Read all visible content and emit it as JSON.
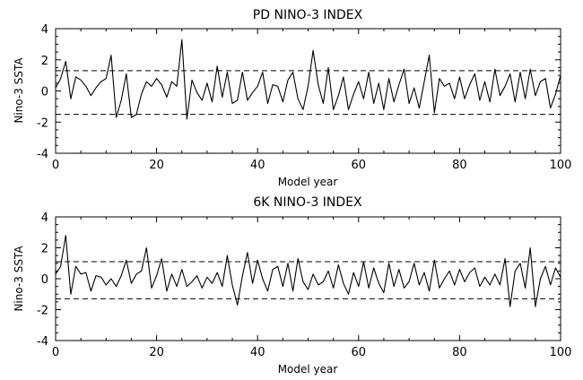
{
  "chart_data": [
    {
      "type": "line",
      "title": "PD NINO-3 INDEX",
      "xlabel": "Model year",
      "ylabel": "Nino-3 SSTA",
      "xlim": [
        0,
        100
      ],
      "ylim": [
        -4,
        4
      ],
      "xticks": [
        "0",
        "20",
        "40",
        "60",
        "80",
        "100"
      ],
      "yticks": [
        "4",
        "2",
        "0",
        "-2",
        "-4"
      ],
      "thresholds": [
        1.3,
        -1.5
      ],
      "grid": false,
      "series": [
        {
          "color": "#000000",
          "x": [
            0,
            1,
            2,
            3,
            4,
            5,
            6,
            7,
            8,
            9,
            10,
            11,
            12,
            13,
            14,
            15,
            16,
            17,
            18,
            19,
            20,
            21,
            22,
            23,
            24,
            25,
            26,
            27,
            28,
            29,
            30,
            31,
            32,
            33,
            34,
            35,
            36,
            37,
            38,
            39,
            40,
            41,
            42,
            43,
            44,
            45,
            46,
            47,
            48,
            49,
            50,
            51,
            52,
            53,
            54,
            55,
            56,
            57,
            58,
            59,
            60,
            61,
            62,
            63,
            64,
            65,
            66,
            67,
            68,
            69,
            70,
            71,
            72,
            73,
            74,
            75,
            76,
            77,
            78,
            79,
            80,
            81,
            82,
            83,
            84,
            85,
            86,
            87,
            88,
            89,
            90,
            91,
            92,
            93,
            94,
            95,
            96,
            97,
            98,
            99,
            100
          ],
          "y": [
            0.2,
            0.8,
            1.9,
            -0.5,
            0.9,
            0.7,
            0.3,
            -0.3,
            0.2,
            0.6,
            0.8,
            2.3,
            -1.7,
            -0.6,
            1.1,
            -1.7,
            -1.5,
            -0.2,
            0.6,
            0.3,
            0.8,
            0.4,
            -0.4,
            0.6,
            0.3,
            3.3,
            -1.8,
            0.7,
            -0.1,
            -0.6,
            0.5,
            -0.7,
            1.6,
            -0.4,
            1.2,
            -0.8,
            -0.6,
            1.2,
            -0.6,
            -0.1,
            0.3,
            1.2,
            -0.8,
            0.4,
            0.3,
            -0.7,
            0.7,
            1.2,
            -0.5,
            -1.2,
            0.3,
            2.6,
            0.4,
            -0.8,
            1.5,
            -1.2,
            -0.3,
            0.9,
            -1.2,
            -0.2,
            0.6,
            -0.5,
            1.2,
            -0.8,
            0.5,
            -1.2,
            0.8,
            -0.7,
            0.4,
            1.4,
            -0.8,
            0.2,
            -1.1,
            0.6,
            2.3,
            -1.4,
            0.8,
            0.3,
            0.5,
            -0.5,
            0.9,
            -0.5,
            0.4,
            1.1,
            -0.6,
            0.6,
            -0.7,
            1.4,
            -0.3,
            0.3,
            1.1,
            -0.7,
            1.2,
            -0.5,
            1.4,
            -0.3,
            0.6,
            0.8,
            -1.1,
            -0.2,
            1.0
          ]
        }
      ]
    },
    {
      "type": "line",
      "title": "6K NINO-3 INDEX",
      "xlabel": "Model year",
      "ylabel": "Nino-3 SSTA",
      "xlim": [
        0,
        100
      ],
      "ylim": [
        -4,
        4
      ],
      "xticks": [
        "0",
        "20",
        "40",
        "60",
        "80",
        "100"
      ],
      "yticks": [
        "4",
        "2",
        "0",
        "-2",
        "-4"
      ],
      "thresholds": [
        1.1,
        -1.3
      ],
      "grid": false,
      "series": [
        {
          "color": "#000000",
          "x": [
            0,
            1,
            2,
            3,
            4,
            5,
            6,
            7,
            8,
            9,
            10,
            11,
            12,
            13,
            14,
            15,
            16,
            17,
            18,
            19,
            20,
            21,
            22,
            23,
            24,
            25,
            26,
            27,
            28,
            29,
            30,
            31,
            32,
            33,
            34,
            35,
            36,
            37,
            38,
            39,
            40,
            41,
            42,
            43,
            44,
            45,
            46,
            47,
            48,
            49,
            50,
            51,
            52,
            53,
            54,
            55,
            56,
            57,
            58,
            59,
            60,
            61,
            62,
            63,
            64,
            65,
            66,
            67,
            68,
            69,
            70,
            71,
            72,
            73,
            74,
            75,
            76,
            77,
            78,
            79,
            80,
            81,
            82,
            83,
            84,
            85,
            86,
            87,
            88,
            89,
            90,
            91,
            92,
            93,
            94,
            95,
            96,
            97,
            98,
            99,
            100
          ],
          "y": [
            0.3,
            0.8,
            2.8,
            -1.0,
            0.8,
            0.3,
            0.4,
            -0.8,
            0.2,
            0.1,
            -0.4,
            0.0,
            -0.5,
            0.2,
            1.2,
            -0.3,
            0.3,
            0.5,
            2.0,
            -0.6,
            0.2,
            1.3,
            -0.8,
            0.3,
            -0.5,
            0.6,
            -0.5,
            -0.2,
            0.2,
            -0.6,
            0.1,
            -0.3,
            0.4,
            -0.5,
            1.5,
            -0.4,
            -1.7,
            0.2,
            1.7,
            -0.3,
            1.2,
            0.0,
            -0.8,
            0.6,
            0.8,
            -0.5,
            1.0,
            -0.8,
            1.3,
            -0.2,
            -0.7,
            0.3,
            -0.4,
            -0.2,
            0.5,
            -0.6,
            0.9,
            -0.3,
            -1.0,
            0.4,
            -0.5,
            1.1,
            -0.6,
            0.7,
            -0.3,
            -0.9,
            1.0,
            -0.5,
            0.6,
            -0.6,
            -0.2,
            1.0,
            -0.4,
            0.4,
            -0.8,
            1.2,
            -0.6,
            0.0,
            0.5,
            -0.4,
            0.6,
            -0.2,
            0.4,
            0.7,
            -0.5,
            0.1,
            -0.4,
            0.3,
            -0.4,
            1.3,
            -1.8,
            0.5,
            1.0,
            -0.6,
            2.0,
            -1.8,
            0.0,
            0.8,
            -0.4,
            0.7,
            0.1
          ]
        }
      ]
    }
  ]
}
